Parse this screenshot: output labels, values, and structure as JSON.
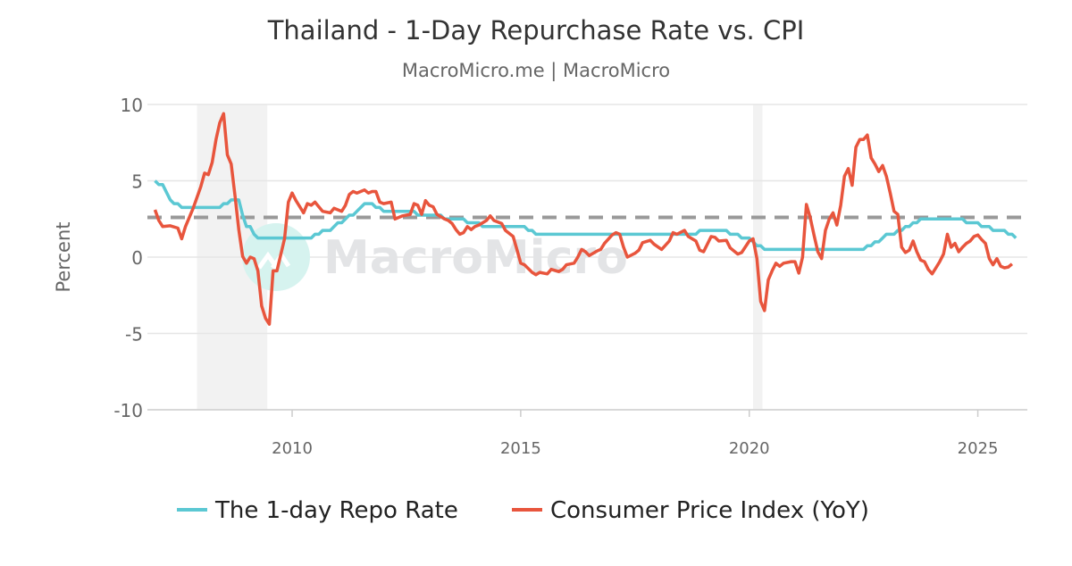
{
  "chart_data": {
    "type": "line",
    "title": "Thailand - 1-Day Repurchase Rate vs. CPI",
    "subtitle": "MacroMicro.me | MacroMicro",
    "ylabel": "Percent",
    "xlabel": "",
    "ylim": [
      -10,
      10
    ],
    "xlim": [
      "2006-11",
      "2026-02"
    ],
    "yticks": [
      10,
      5,
      0,
      -5,
      -10
    ],
    "xticks": [
      "2010",
      "2015",
      "2020",
      "2025"
    ],
    "grid": true,
    "legend_placement": "bottom",
    "watermark": "MacroMicro",
    "reference_line": {
      "value": 2.6,
      "style": "dashed",
      "color": "#999999"
    },
    "shaded_periods": [
      [
        "2007-12",
        "2009-06"
      ],
      [
        "2020-02",
        "2020-04"
      ]
    ],
    "series": [
      {
        "name": "The 1-day Repo Rate",
        "color": "#5bc8d3",
        "step_changes": [
          [
            "2007-01",
            5.0
          ],
          [
            "2007-02",
            4.75
          ],
          [
            "2007-04",
            4.25
          ],
          [
            "2007-05",
            3.75
          ],
          [
            "2007-06",
            3.5
          ],
          [
            "2007-08",
            3.25
          ],
          [
            "2008-07",
            3.5
          ],
          [
            "2008-09",
            3.75
          ],
          [
            "2008-12",
            2.75
          ],
          [
            "2009-01",
            2.0
          ],
          [
            "2009-03",
            1.5
          ],
          [
            "2009-04",
            1.25
          ],
          [
            "2010-07",
            1.5
          ],
          [
            "2010-09",
            1.75
          ],
          [
            "2010-12",
            2.0
          ],
          [
            "2011-01",
            2.25
          ],
          [
            "2011-03",
            2.5
          ],
          [
            "2011-04",
            2.75
          ],
          [
            "2011-06",
            3.0
          ],
          [
            "2011-07",
            3.25
          ],
          [
            "2011-08",
            3.5
          ],
          [
            "2011-11",
            3.25
          ],
          [
            "2012-01",
            3.0
          ],
          [
            "2012-10",
            2.75
          ],
          [
            "2013-05",
            2.5
          ],
          [
            "2013-11",
            2.25
          ],
          [
            "2014-03",
            2.0
          ],
          [
            "2015-03",
            1.75
          ],
          [
            "2015-05",
            1.5
          ],
          [
            "2018-12",
            1.75
          ],
          [
            "2019-08",
            1.5
          ],
          [
            "2019-11",
            1.25
          ],
          [
            "2020-02",
            1.0
          ],
          [
            "2020-03",
            0.75
          ],
          [
            "2020-05",
            0.5
          ],
          [
            "2022-08",
            0.75
          ],
          [
            "2022-10",
            1.0
          ],
          [
            "2022-12",
            1.25
          ],
          [
            "2023-01",
            1.5
          ],
          [
            "2023-04",
            1.75
          ],
          [
            "2023-06",
            2.0
          ],
          [
            "2023-08",
            2.25
          ],
          [
            "2023-10",
            2.5
          ],
          [
            "2024-10",
            2.25
          ],
          [
            "2025-02",
            2.0
          ],
          [
            "2025-05",
            1.75
          ],
          [
            "2025-09",
            1.5
          ],
          [
            "2025-11",
            1.25
          ]
        ],
        "end": "2025-11"
      },
      {
        "name": "Consumer Price Index (YoY)",
        "color": "#e8553d",
        "points": [
          [
            "2007-01",
            3.1
          ],
          [
            "2007-02",
            2.4
          ],
          [
            "2007-03",
            2.0
          ],
          [
            "2007-05",
            2.05
          ],
          [
            "2007-07",
            1.9
          ],
          [
            "2007-08",
            1.2
          ],
          [
            "2007-09",
            2.0
          ],
          [
            "2007-11",
            3.2
          ],
          [
            "2008-01",
            4.6
          ],
          [
            "2008-02",
            5.5
          ],
          [
            "2008-03",
            5.4
          ],
          [
            "2008-04",
            6.2
          ],
          [
            "2008-05",
            7.7
          ],
          [
            "2008-06",
            8.8
          ],
          [
            "2008-07",
            9.4
          ],
          [
            "2008-08",
            6.7
          ],
          [
            "2008-09",
            6.1
          ],
          [
            "2008-10",
            4.0
          ],
          [
            "2008-11",
            1.8
          ],
          [
            "2008-12",
            0.05
          ],
          [
            "2009-01",
            -0.4
          ],
          [
            "2009-02",
            0.0
          ],
          [
            "2009-03",
            -0.1
          ],
          [
            "2009-04",
            -0.9
          ],
          [
            "2009-05",
            -3.2
          ],
          [
            "2009-06",
            -4.0
          ],
          [
            "2009-07",
            -4.4
          ],
          [
            "2009-08",
            -0.9
          ],
          [
            "2009-09",
            -0.9
          ],
          [
            "2009-11",
            1.2
          ],
          [
            "2009-12",
            3.6
          ],
          [
            "2010-01",
            4.2
          ],
          [
            "2010-02",
            3.7
          ],
          [
            "2010-03",
            3.3
          ],
          [
            "2010-04",
            2.9
          ],
          [
            "2010-05",
            3.5
          ],
          [
            "2010-06",
            3.4
          ],
          [
            "2010-07",
            3.6
          ],
          [
            "2010-08",
            3.3
          ],
          [
            "2010-09",
            3.0
          ],
          [
            "2010-11",
            2.9
          ],
          [
            "2010-12",
            3.2
          ],
          [
            "2011-01",
            3.1
          ],
          [
            "2011-02",
            3.0
          ],
          [
            "2011-03",
            3.4
          ],
          [
            "2011-04",
            4.1
          ],
          [
            "2011-05",
            4.3
          ],
          [
            "2011-06",
            4.2
          ],
          [
            "2011-08",
            4.4
          ],
          [
            "2011-09",
            4.2
          ],
          [
            "2011-10",
            4.3
          ],
          [
            "2011-11",
            4.3
          ],
          [
            "2011-12",
            3.6
          ],
          [
            "2012-01",
            3.5
          ],
          [
            "2012-03",
            3.6
          ],
          [
            "2012-04",
            2.5
          ],
          [
            "2012-06",
            2.7
          ],
          [
            "2012-08",
            2.8
          ],
          [
            "2012-09",
            3.5
          ],
          [
            "2012-10",
            3.4
          ],
          [
            "2012-11",
            2.8
          ],
          [
            "2012-12",
            3.7
          ],
          [
            "2013-01",
            3.4
          ],
          [
            "2013-02",
            3.3
          ],
          [
            "2013-03",
            2.8
          ],
          [
            "2013-05",
            2.5
          ],
          [
            "2013-06",
            2.4
          ],
          [
            "2013-07",
            2.2
          ],
          [
            "2013-08",
            1.8
          ],
          [
            "2013-09",
            1.5
          ],
          [
            "2013-10",
            1.6
          ],
          [
            "2013-11",
            2.0
          ],
          [
            "2013-12",
            1.8
          ],
          [
            "2014-01",
            2.0
          ],
          [
            "2014-02",
            2.1
          ],
          [
            "2014-04",
            2.4
          ],
          [
            "2014-05",
            2.7
          ],
          [
            "2014-06",
            2.4
          ],
          [
            "2014-08",
            2.2
          ],
          [
            "2014-09",
            1.75
          ],
          [
            "2014-11",
            1.35
          ],
          [
            "2014-12",
            0.5
          ],
          [
            "2015-01",
            -0.4
          ],
          [
            "2015-02",
            -0.5
          ],
          [
            "2015-04",
            -1.0
          ],
          [
            "2015-05",
            -1.15
          ],
          [
            "2015-06",
            -1.0
          ],
          [
            "2015-08",
            -1.1
          ],
          [
            "2015-09",
            -0.8
          ],
          [
            "2015-11",
            -0.95
          ],
          [
            "2015-12",
            -0.8
          ],
          [
            "2016-01",
            -0.5
          ],
          [
            "2016-03",
            -0.4
          ],
          [
            "2016-04",
            0.0
          ],
          [
            "2016-05",
            0.5
          ],
          [
            "2016-06",
            0.35
          ],
          [
            "2016-07",
            0.1
          ],
          [
            "2016-09",
            0.4
          ],
          [
            "2016-10",
            0.5
          ],
          [
            "2016-11",
            0.9
          ],
          [
            "2017-01",
            1.45
          ],
          [
            "2017-02",
            1.6
          ],
          [
            "2017-03",
            1.5
          ],
          [
            "2017-04",
            0.65
          ],
          [
            "2017-05",
            0.0
          ],
          [
            "2017-07",
            0.25
          ],
          [
            "2017-08",
            0.45
          ],
          [
            "2017-09",
            0.95
          ],
          [
            "2017-11",
            1.1
          ],
          [
            "2017-12",
            0.85
          ],
          [
            "2018-02",
            0.5
          ],
          [
            "2018-04",
            1.05
          ],
          [
            "2018-05",
            1.6
          ],
          [
            "2018-06",
            1.5
          ],
          [
            "2018-08",
            1.75
          ],
          [
            "2018-09",
            1.35
          ],
          [
            "2018-11",
            1.05
          ],
          [
            "2018-12",
            0.45
          ],
          [
            "2019-01",
            0.35
          ],
          [
            "2019-03",
            1.35
          ],
          [
            "2019-04",
            1.3
          ],
          [
            "2019-05",
            1.05
          ],
          [
            "2019-07",
            1.1
          ],
          [
            "2019-08",
            0.6
          ],
          [
            "2019-10",
            0.2
          ],
          [
            "2019-11",
            0.3
          ],
          [
            "2020-01",
            1.05
          ],
          [
            "2020-02",
            1.2
          ],
          [
            "2020-03",
            -0.1
          ],
          [
            "2020-04",
            -2.9
          ],
          [
            "2020-05",
            -3.5
          ],
          [
            "2020-06",
            -1.5
          ],
          [
            "2020-07",
            -0.9
          ],
          [
            "2020-08",
            -0.4
          ],
          [
            "2020-09",
            -0.6
          ],
          [
            "2020-10",
            -0.4
          ],
          [
            "2020-12",
            -0.3
          ],
          [
            "2021-01",
            -0.3
          ],
          [
            "2021-02",
            -1.05
          ],
          [
            "2021-03",
            0.0
          ],
          [
            "2021-04",
            3.45
          ],
          [
            "2021-05",
            2.6
          ],
          [
            "2021-06",
            1.45
          ],
          [
            "2021-07",
            0.35
          ],
          [
            "2021-08",
            -0.1
          ],
          [
            "2021-09",
            1.75
          ],
          [
            "2021-10",
            2.5
          ],
          [
            "2021-11",
            2.9
          ],
          [
            "2021-12",
            2.1
          ],
          [
            "2022-01",
            3.4
          ],
          [
            "2022-02",
            5.3
          ],
          [
            "2022-03",
            5.8
          ],
          [
            "2022-04",
            4.7
          ],
          [
            "2022-05",
            7.2
          ],
          [
            "2022-06",
            7.7
          ],
          [
            "2022-07",
            7.7
          ],
          [
            "2022-08",
            8.0
          ],
          [
            "2022-09",
            6.5
          ],
          [
            "2022-10",
            6.1
          ],
          [
            "2022-11",
            5.6
          ],
          [
            "2022-12",
            6.0
          ],
          [
            "2023-01",
            5.3
          ],
          [
            "2023-02",
            4.2
          ],
          [
            "2023-03",
            3.0
          ],
          [
            "2023-04",
            2.8
          ],
          [
            "2023-05",
            0.65
          ],
          [
            "2023-06",
            0.3
          ],
          [
            "2023-07",
            0.45
          ],
          [
            "2023-08",
            1.05
          ],
          [
            "2023-09",
            0.35
          ],
          [
            "2023-10",
            -0.2
          ],
          [
            "2023-11",
            -0.3
          ],
          [
            "2023-12",
            -0.8
          ],
          [
            "2024-01",
            -1.1
          ],
          [
            "2024-02",
            -0.7
          ],
          [
            "2024-03",
            -0.3
          ],
          [
            "2024-04",
            0.2
          ],
          [
            "2024-05",
            1.5
          ],
          [
            "2024-06",
            0.65
          ],
          [
            "2024-07",
            0.9
          ],
          [
            "2024-08",
            0.35
          ],
          [
            "2024-09",
            0.65
          ],
          [
            "2024-10",
            0.9
          ],
          [
            "2024-11",
            1.05
          ],
          [
            "2024-12",
            1.35
          ],
          [
            "2025-01",
            1.45
          ],
          [
            "2025-02",
            1.15
          ],
          [
            "2025-03",
            0.9
          ],
          [
            "2025-04",
            -0.1
          ],
          [
            "2025-05",
            -0.5
          ],
          [
            "2025-06",
            -0.1
          ],
          [
            "2025-07",
            -0.6
          ],
          [
            "2025-08",
            -0.7
          ],
          [
            "2025-09",
            -0.65
          ],
          [
            "2025-10",
            -0.45
          ]
        ]
      }
    ]
  }
}
